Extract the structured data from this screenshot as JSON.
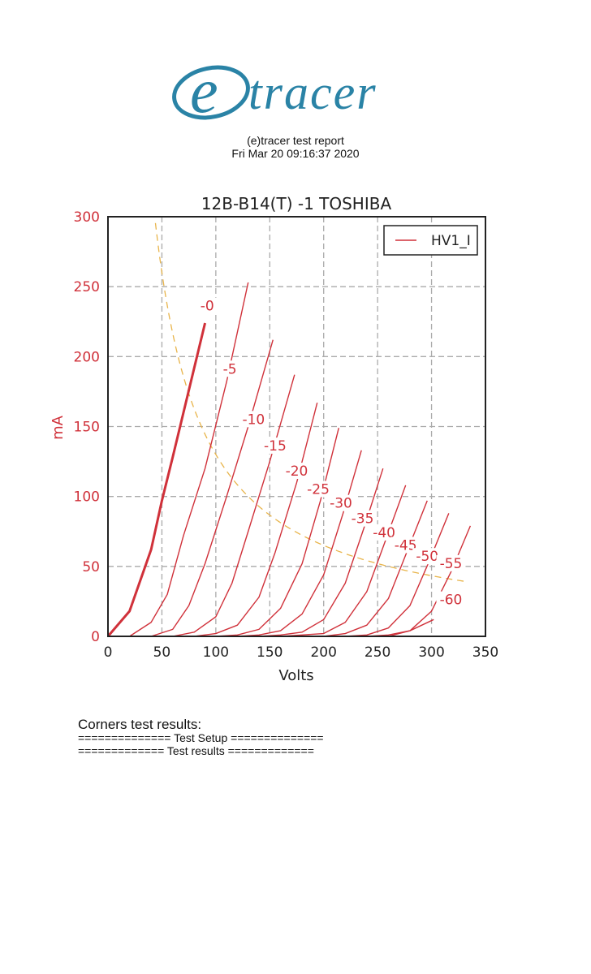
{
  "header": {
    "logo_text_e": "e",
    "logo_text_rest": "tracer",
    "report_title": "(e)tracer test report",
    "timestamp": "Fri Mar 20 09:16:37 2020",
    "brand_color": "#2a83a6"
  },
  "results": {
    "title": "Corners test results:",
    "setup_line": "============== Test Setup ==============",
    "results_line": "============= Test results ============="
  },
  "chart_data": {
    "type": "line",
    "title": "12B-B14(T) -1  TOSHIBA",
    "xlabel": "Volts",
    "ylabel": "mA",
    "xlim": [
      0,
      350
    ],
    "ylim": [
      0,
      300
    ],
    "xticks": [
      "0",
      "50",
      "100",
      "150",
      "200",
      "250",
      "300",
      "350"
    ],
    "yticks": [
      "0",
      "50",
      "100",
      "150",
      "200",
      "250",
      "300"
    ],
    "grid": true,
    "legend": {
      "position": "upper right",
      "entries": [
        "HV1_I"
      ]
    },
    "series_color": "#d0313a",
    "dissipation_color": "#e8b44a",
    "series": [
      {
        "name": "-0",
        "bold": true,
        "x": [
          0,
          20,
          40,
          50,
          60,
          70,
          80,
          90
        ],
        "y": [
          0,
          18,
          62,
          97,
          128,
          160,
          192,
          224
        ]
      },
      {
        "name": "-5",
        "x": [
          20,
          40,
          55,
          70,
          90,
          110,
          130
        ],
        "y": [
          0,
          10,
          30,
          72,
          120,
          182,
          253
        ]
      },
      {
        "name": "-10",
        "x": [
          40,
          60,
          75,
          90,
          110,
          130,
          153
        ],
        "y": [
          0,
          5,
          22,
          52,
          100,
          150,
          212
        ]
      },
      {
        "name": "-15",
        "x": [
          60,
          80,
          100,
          115,
          130,
          150,
          173
        ],
        "y": [
          0,
          3,
          14,
          38,
          75,
          125,
          187
        ]
      },
      {
        "name": "-20",
        "x": [
          80,
          100,
          120,
          140,
          155,
          175,
          194
        ],
        "y": [
          0,
          2,
          8,
          28,
          60,
          110,
          167
        ]
      },
      {
        "name": "-25",
        "x": [
          100,
          120,
          140,
          160,
          180,
          197,
          214
        ],
        "y": [
          0,
          1,
          5,
          20,
          52,
          97,
          149
        ]
      },
      {
        "name": "-30",
        "x": [
          120,
          140,
          160,
          180,
          200,
          218,
          235
        ],
        "y": [
          0,
          1,
          4,
          16,
          44,
          88,
          133
        ]
      },
      {
        "name": "-35",
        "x": [
          140,
          160,
          180,
          200,
          220,
          238,
          255
        ],
        "y": [
          0,
          1,
          3,
          12,
          38,
          79,
          120
        ]
      },
      {
        "name": "-40",
        "x": [
          160,
          180,
          200,
          220,
          240,
          258,
          276
        ],
        "y": [
          0,
          1,
          2,
          10,
          32,
          70,
          108
        ]
      },
      {
        "name": "-45",
        "x": [
          180,
          200,
          220,
          240,
          260,
          278,
          296
        ],
        "y": [
          0,
          0,
          2,
          8,
          27,
          62,
          97
        ]
      },
      {
        "name": "-50",
        "x": [
          200,
          220,
          240,
          260,
          280,
          298,
          316
        ],
        "y": [
          0,
          0,
          1,
          6,
          22,
          54,
          88
        ]
      },
      {
        "name": "-55",
        "x": [
          220,
          240,
          260,
          280,
          300,
          318,
          336
        ],
        "y": [
          0,
          0,
          1,
          4,
          18,
          46,
          79
        ]
      },
      {
        "name": "-60",
        "x": [
          240,
          260,
          280,
          302
        ],
        "y": [
          0,
          0,
          4,
          12
        ]
      }
    ],
    "labels": [
      {
        "text": "-0",
        "x": 92,
        "y": 234
      },
      {
        "text": "-5",
        "x": 113,
        "y": 189
      },
      {
        "text": "-10",
        "x": 135,
        "y": 153
      },
      {
        "text": "-15",
        "x": 155,
        "y": 134
      },
      {
        "text": "-20",
        "x": 175,
        "y": 116
      },
      {
        "text": "-25",
        "x": 195,
        "y": 103
      },
      {
        "text": "-30",
        "x": 216,
        "y": 93
      },
      {
        "text": "-35",
        "x": 236,
        "y": 82
      },
      {
        "text": "-40",
        "x": 256,
        "y": 72
      },
      {
        "text": "-45",
        "x": 276,
        "y": 63
      },
      {
        "text": "-50",
        "x": 296,
        "y": 55
      },
      {
        "text": "-55",
        "x": 318,
        "y": 50
      },
      {
        "text": "-60",
        "x": 318,
        "y": 24
      }
    ],
    "max_dissipation_curve": {
      "watts": 13,
      "x_start": 44,
      "x_end": 334
    }
  }
}
